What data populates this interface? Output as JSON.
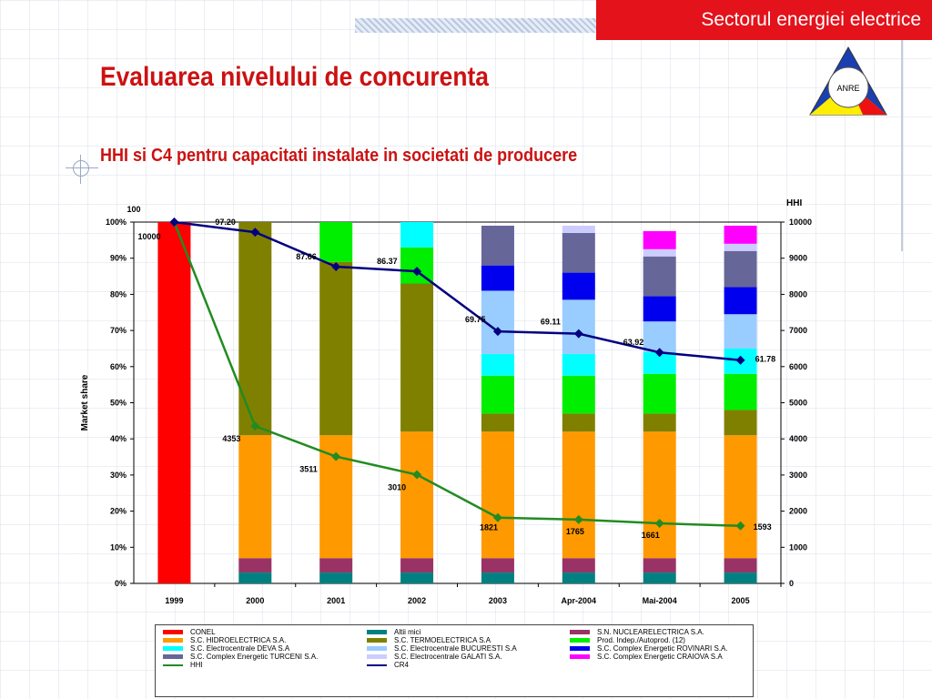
{
  "header": {
    "tag": "Sectorul energiei electrice"
  },
  "logo": {
    "text": "ANRE"
  },
  "page": {
    "title": "Evaluarea nivelului de concurenta",
    "subtitle": "HHI si C4 pentru capacitati instalate in societati de producere"
  },
  "colors": {
    "accent": "#e3121b",
    "title": "#cc1111",
    "CONEL": "#ff0000",
    "Altii mici": "#008080",
    "S.N. NUCLEARELECTRICA S.A.": "#993366",
    "S.C. HIDROELECTRICA S.A.": "#ff9900",
    "S.C. TERMOELECTRICA S.A": "#808000",
    "Prod. Indep./Autoprod. (12)": "#00ee00",
    "S.C. Electrocentrale DEVA S.A": "#00ffff",
    "S.C. Electrocentrale BUCURESTI S.A": "#99ccff",
    "S.C. Complex Energetic ROVINARI S.A.": "#0000ee",
    "S.C. Complex Energetic TURCENI S.A.": "#666699",
    "S.C. Electrocentrale GALATI S.A.": "#ccccff",
    "S.C. Complex Energetic CRAIOVA S.A": "#ff00ff",
    "HHI": "#228b22",
    "CR4": "#000080"
  },
  "chart_data": {
    "type": "bar",
    "stacked": true,
    "categories": [
      "1999",
      "2000",
      "2001",
      "2002",
      "2003",
      "Apr-2004",
      "Mai-2004",
      "2005"
    ],
    "ylabel": "Market share",
    "y2label": "HHI",
    "ylim": [
      0,
      100
    ],
    "y2lim": [
      0,
      10000
    ],
    "yticks": [
      "0%",
      "10%",
      "20%",
      "30%",
      "40%",
      "50%",
      "60%",
      "70%",
      "80%",
      "90%",
      "100%"
    ],
    "y2ticks": [
      "0",
      "1000",
      "2000",
      "3000",
      "4000",
      "5000",
      "6000",
      "7000",
      "8000",
      "9000",
      "10000"
    ],
    "series": [
      {
        "name": "Altii mici",
        "values": [
          0,
          3,
          3,
          3,
          3,
          3,
          3,
          3
        ]
      },
      {
        "name": "S.N. NUCLEARELECTRICA S.A.",
        "values": [
          0,
          4,
          4,
          4,
          4,
          4,
          4,
          4
        ]
      },
      {
        "name": "S.C. HIDROELECTRICA S.A.",
        "values": [
          0,
          34,
          34,
          35,
          35,
          35,
          35,
          34
        ]
      },
      {
        "name": "S.C. TERMOELECTRICA S.A",
        "values": [
          0,
          59,
          48,
          41,
          5,
          5,
          5,
          7
        ]
      },
      {
        "name": "Prod. Indep./Autoprod. (12)",
        "values": [
          0,
          0,
          11,
          10,
          10.5,
          10.5,
          11,
          10
        ]
      },
      {
        "name": "S.C. Electrocentrale DEVA S.A",
        "values": [
          0,
          0,
          0,
          7,
          6,
          6,
          6,
          7
        ]
      },
      {
        "name": "S.C. Electrocentrale BUCURESTI S.A",
        "values": [
          0,
          0,
          0,
          0,
          17.5,
          15,
          8.5,
          9.5
        ]
      },
      {
        "name": "S.C. Complex Energetic ROVINARI S.A.",
        "values": [
          0,
          0,
          0,
          0,
          7,
          7.5,
          7,
          7.5
        ]
      },
      {
        "name": "S.C. Complex Energetic TURCENI S.A.",
        "values": [
          0,
          0,
          0,
          0,
          11,
          11,
          11,
          10
        ]
      },
      {
        "name": "S.C. Electrocentrale GALATI S.A.",
        "values": [
          0,
          0,
          0,
          0,
          0,
          2,
          2,
          2
        ]
      },
      {
        "name": "S.C. Complex Energetic CRAIOVA S.A",
        "values": [
          0,
          0,
          0,
          0,
          0,
          0,
          5,
          5
        ]
      },
      {
        "name": "CONEL",
        "values": [
          100,
          0,
          0,
          0,
          0,
          0,
          0,
          0
        ]
      }
    ],
    "lines": [
      {
        "name": "HHI",
        "axis": "right",
        "values": [
          10000,
          4353,
          3511,
          3010,
          1821,
          1765,
          1661,
          1593
        ],
        "labels": [
          "10000",
          "4353",
          "3511",
          "3010",
          "1821",
          "1765",
          "1661",
          "1593"
        ]
      },
      {
        "name": "CR4",
        "axis": "left",
        "values": [
          100,
          97.2,
          87.66,
          86.37,
          69.75,
          69.11,
          63.92,
          61.78
        ],
        "labels": [
          "100",
          "97.20",
          "87.66",
          "86.37",
          "69.75",
          "69.11",
          "63.92",
          "61.78"
        ]
      }
    ],
    "legend_order": [
      "CONEL",
      "Altii mici",
      "S.N. NUCLEARELECTRICA S.A.",
      "S.C. HIDROELECTRICA S.A.",
      "S.C. TERMOELECTRICA S.A",
      "Prod. Indep./Autoprod. (12)",
      "S.C. Electrocentrale DEVA S.A",
      "S.C. Electrocentrale BUCURESTI S.A",
      "S.C. Complex Energetic ROVINARI S.A.",
      "S.C. Complex Energetic TURCENI S.A.",
      "S.C. Electrocentrale GALATI S.A.",
      "S.C. Complex Energetic CRAIOVA S.A",
      "HHI",
      "CR4"
    ],
    "legend_position": "bottom",
    "grid": false
  }
}
